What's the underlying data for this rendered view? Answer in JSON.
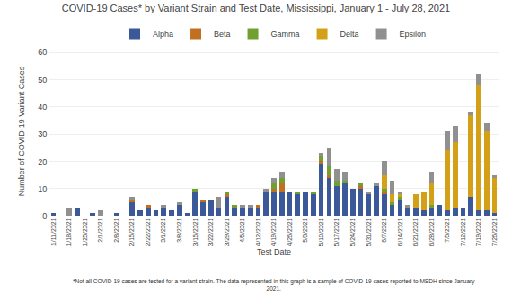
{
  "chart_data": {
    "type": "bar",
    "title": "COVID-19 Cases* by Variant Strain and Test Date, Mississippi, January 1 - July 28, 2021",
    "xlabel": "Test Date",
    "ylabel": "Number of COVID-19 Variant Cases",
    "annotations": [
      "*Not all COVID-19 cases are tested for a variant strain. The data represented in this graph is a sample of COVID-19 cases reported to MSDH since January\n2021."
    ],
    "categories": [
      "1/11/2021",
      null,
      "1/18/2021",
      null,
      "1/25/2021",
      null,
      "2/1/2021",
      null,
      "2/8/2021",
      null,
      "2/15/2021",
      null,
      "2/22/2021",
      null,
      "3/1/2021",
      null,
      "3/8/2021",
      null,
      "3/15/2021",
      null,
      "3/22/2021",
      null,
      "3/29/2021",
      null,
      "4/5/2021",
      null,
      "4/12/2021",
      null,
      "4/19/2021",
      null,
      "4/26/2021",
      null,
      "5/3/2021",
      null,
      "5/10/2021",
      null,
      "5/17/2021",
      null,
      "5/24/2021",
      null,
      "5/31/2021",
      null,
      "6/7/2021",
      null,
      "6/14/2021",
      null,
      "6/21/2021",
      null,
      "6/28/2021",
      null,
      "7/5/2021",
      null,
      "7/12/2021",
      null,
      "7/19/2021",
      null,
      "7/26/2021"
    ],
    "series": [
      {
        "name": "Alpha",
        "color": "#3B5998",
        "values": [
          1,
          0,
          0,
          3,
          0,
          1,
          0,
          0,
          1,
          0,
          5,
          2,
          3,
          2,
          3,
          2,
          4,
          1,
          9,
          5,
          6,
          3,
          7,
          3,
          3,
          3,
          3,
          9,
          9,
          9,
          9,
          8,
          9,
          8,
          19,
          14,
          11,
          12,
          10,
          10,
          8,
          11,
          8,
          4,
          6,
          3,
          3,
          2,
          3,
          4,
          2,
          3,
          3,
          7,
          2,
          2,
          1
        ]
      },
      {
        "name": "Beta",
        "color": "#C07020",
        "values": [
          0,
          0,
          0,
          0,
          0,
          0,
          0,
          0,
          0,
          0,
          1,
          0,
          1,
          0,
          0,
          0,
          0,
          0,
          0,
          1,
          0,
          0,
          1,
          0,
          0,
          0,
          1,
          0,
          1,
          3,
          0,
          0,
          0,
          0,
          1,
          1,
          0,
          0,
          0,
          1,
          0,
          0,
          1,
          0,
          0,
          0,
          0,
          0,
          0,
          0,
          0,
          0,
          0,
          0,
          0,
          0,
          0
        ]
      },
      {
        "name": "Gamma",
        "color": "#70A030",
        "values": [
          0,
          0,
          0,
          0,
          0,
          0,
          0,
          0,
          0,
          0,
          0,
          0,
          0,
          0,
          0,
          0,
          0,
          0,
          1,
          0,
          0,
          0,
          1,
          1,
          0,
          0,
          0,
          0,
          2,
          2,
          0,
          1,
          0,
          1,
          2,
          3,
          2,
          1,
          0,
          1,
          0,
          0,
          1,
          1,
          1,
          0,
          0,
          0,
          1,
          0,
          0,
          0,
          0,
          0,
          0,
          0,
          0
        ]
      },
      {
        "name": "Delta",
        "color": "#D4A017",
        "values": [
          0,
          0,
          0,
          0,
          0,
          0,
          0,
          0,
          0,
          0,
          0,
          0,
          0,
          0,
          0,
          0,
          0,
          0,
          0,
          0,
          0,
          0,
          0,
          0,
          0,
          0,
          0,
          0,
          0,
          0,
          0,
          0,
          0,
          0,
          0,
          0,
          0,
          0,
          0,
          0,
          0,
          0,
          5,
          3,
          1,
          0,
          5,
          7,
          8,
          0,
          22,
          24,
          0,
          30,
          46,
          29,
          13
        ]
      },
      {
        "name": "Epsilon",
        "color": "#909090",
        "values": [
          0,
          0,
          3,
          0,
          0,
          0,
          2,
          0,
          0,
          0,
          1,
          0,
          0,
          0,
          1,
          0,
          1,
          0,
          0,
          0,
          0,
          4,
          0,
          0,
          1,
          1,
          0,
          1,
          2,
          2,
          0,
          0,
          0,
          0,
          1,
          7,
          4,
          3,
          0,
          0,
          1,
          1,
          5,
          5,
          1,
          1,
          0,
          0,
          4,
          0,
          7,
          6,
          0,
          1,
          4,
          3,
          1
        ]
      }
    ],
    "stacked": true,
    "ylim": [
      0,
      62
    ],
    "yticks": [
      0,
      10,
      20,
      30,
      40,
      50,
      60
    ],
    "grid": true,
    "legend": "top"
  }
}
